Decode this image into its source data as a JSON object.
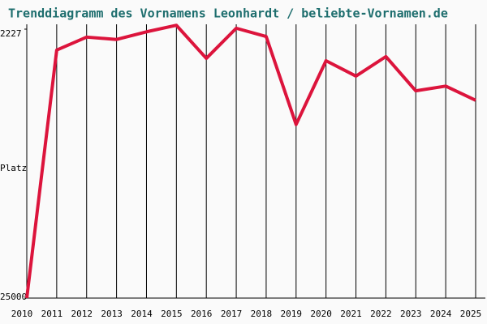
{
  "chart_data": {
    "type": "line",
    "title": "Trenddiagramm des Vornamens Leonhardt / beliebte-Vornamen.de",
    "y_label": "Platz",
    "categories": [
      "2010",
      "2011",
      "2012",
      "2013",
      "2014",
      "2015",
      "2016",
      "2017",
      "2018",
      "2019",
      "2020",
      "2021",
      "2022",
      "2023",
      "2024",
      "2025"
    ],
    "values": [
      25000,
      4000,
      2900,
      3100,
      2450,
      1900,
      4700,
      2150,
      2850,
      10300,
      4900,
      6200,
      4550,
      7450,
      7050,
      8250
    ],
    "color": "#dc143c",
    "ylim": [
      25000,
      2227
    ],
    "yticks": [
      2227,
      25000
    ],
    "grid": true
  }
}
